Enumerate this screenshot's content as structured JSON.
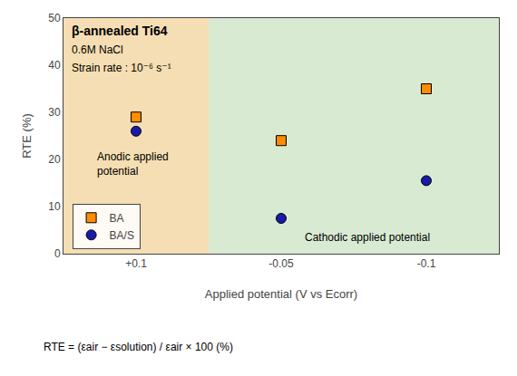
{
  "chart_data": {
    "type": "scatter",
    "title": "β-annealed Ti64",
    "subtitle": [
      "0.6M NaCl",
      "Strain rate : 10⁻⁶ s⁻¹"
    ],
    "x_label": "Applied potential (V vs Ecorr)",
    "y_label": "RTE (%)",
    "categories": [
      "+0.1",
      "-0.05",
      "-0.1"
    ],
    "series": [
      {
        "name": "BA",
        "color": "#FF8C00",
        "marker": "square",
        "values": [
          29,
          24,
          35
        ]
      },
      {
        "name": "BA/S",
        "color": "#1a1aaa",
        "marker": "circle",
        "values": [
          26,
          7.5,
          15.5
        ]
      }
    ],
    "regions": [
      {
        "label": "Anodic applied\npotential",
        "color": "#F5DEB3",
        "categories": [
          "+0.1"
        ]
      },
      {
        "label": "Cathodic applied potential",
        "color": "#D9EAD3",
        "categories": [
          "-0.05",
          "-0.1"
        ]
      }
    ],
    "annotations": [
      "RTE = (εair − εsolution) / εair × 100 (%)"
    ],
    "ylim": [
      0,
      50
    ],
    "yticks": [
      0,
      10,
      20,
      30,
      40,
      50
    ],
    "legend": "lower left",
    "grid": false
  }
}
